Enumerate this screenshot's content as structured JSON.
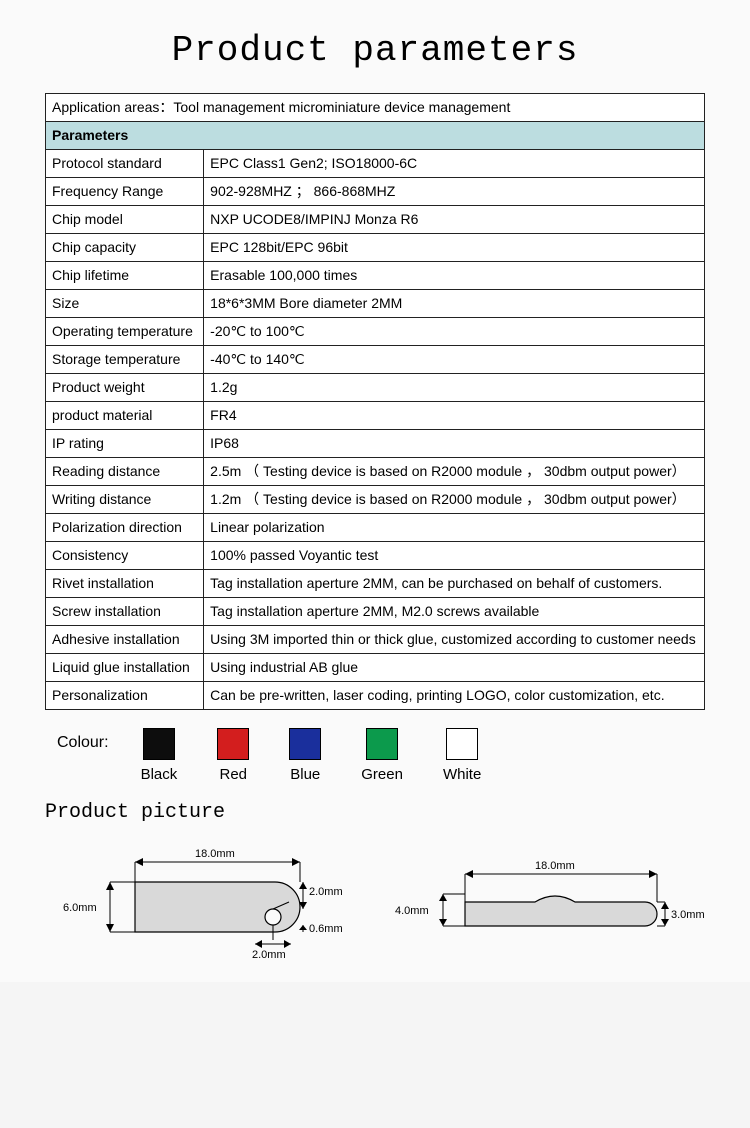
{
  "title": "Product parameters",
  "application_row": "Application areas：Tool management microminiature device management",
  "parameters_label": "Parameters",
  "rows": [
    {
      "label": "Protocol standard",
      "value": "EPC Class1 Gen2; ISO18000-6C"
    },
    {
      "label": "Frequency Range",
      "value": "902-928MHZ ； 866-868MHZ"
    },
    {
      "label": "Chip model",
      "value": "NXP UCODE8/IMPINJ Monza R6"
    },
    {
      "label": "Chip capacity",
      "value": "EPC 128bit/EPC 96bit"
    },
    {
      "label": "Chip lifetime",
      "value": "Erasable 100,000 times"
    },
    {
      "label": "Size",
      "value": "18*6*3MM    Bore diameter 2MM"
    },
    {
      "label": "Operating temperature",
      "value": "-20℃ to 100℃"
    },
    {
      "label": "Storage temperature",
      "value": "-40℃ to 140℃"
    },
    {
      "label": "Product weight",
      "value": "1.2g"
    },
    {
      "label": "product material",
      "value": "FR4"
    },
    {
      "label": "IP rating",
      "value": "IP68"
    },
    {
      "label": "Reading distance",
      "value": "2.5m （ Testing device is based on R2000 module ， 30dbm output power）",
      "just": true
    },
    {
      "label": "Writing distance",
      "value": "1.2m （ Testing device is based on R2000 module ， 30dbm output power）",
      "just": true
    },
    {
      "label": "Polarization direction",
      "value": "Linear polarization"
    },
    {
      "label": "Consistency",
      "value": "100% passed Voyantic test"
    },
    {
      "label": "Rivet installation",
      "value": "Tag installation aperture 2MM, can be purchased on behalf of customers.",
      "just": true
    },
    {
      "label": "Screw installation",
      "value": "Tag installation aperture 2MM, M2.0 screws available"
    },
    {
      "label": "Adhesive installation",
      "value": "Using 3M imported thin or thick glue, customized according to customer needs",
      "just": true
    },
    {
      "label": "Liquid glue installation",
      "value": "Using industrial AB glue"
    },
    {
      "label": "Personalization",
      "value": "Can be pre-written, laser coding, printing LOGO, color customization, etc."
    }
  ],
  "colour_label": "Colour:",
  "swatches": [
    {
      "name": "Black",
      "color": "#0d0d0d"
    },
    {
      "name": "Red",
      "color": "#d31e1e"
    },
    {
      "name": "Blue",
      "color": "#1a2f9c"
    },
    {
      "name": "Green",
      "color": "#0c9a4c"
    },
    {
      "name": "White",
      "color": "#ffffff"
    }
  ],
  "section_picture": "Product picture",
  "diagram": {
    "shape_fill": "#d9d9d9",
    "stroke": "#000000",
    "left": {
      "width_label": "18.0mm",
      "height_label": "6.0mm",
      "hole_diam_label": "2.0mm",
      "hole_t1_label": "2.0mm",
      "hole_t2_label": "0.6mm"
    },
    "right": {
      "width_label": "18.0mm",
      "height_label": "4.0mm",
      "thick_label": "3.0mm"
    }
  }
}
